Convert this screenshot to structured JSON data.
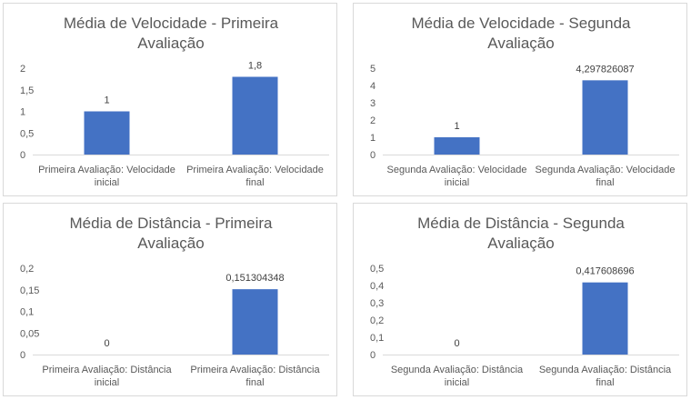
{
  "colors": {
    "bar": "#4472c4",
    "axis": "#d9d9d9",
    "text": "#595959"
  },
  "chart_data": [
    {
      "type": "bar",
      "title_lines": [
        "Média de Velocidade - Primeira",
        "Avaliação"
      ],
      "categories": [
        [
          "Primeira Avaliação: Velocidade",
          "inicial"
        ],
        [
          "Primeira Avaliação: Velocidade",
          "final"
        ]
      ],
      "values": [
        1,
        1.8
      ],
      "value_labels": [
        "1",
        "1,8"
      ],
      "yticks": [
        "0",
        "0,5",
        "1",
        "1,5",
        "2"
      ],
      "ylim": [
        0,
        2
      ],
      "grid": false,
      "legend": "none"
    },
    {
      "type": "bar",
      "title_lines": [
        "Média de Velocidade - Segunda",
        "Avaliação"
      ],
      "categories": [
        [
          "Segunda Avaliação: Velocidade",
          "inicial"
        ],
        [
          "Segunda Avaliação: Velocidade",
          "final"
        ]
      ],
      "values": [
        1,
        4.297826087
      ],
      "value_labels": [
        "1",
        "4,297826087"
      ],
      "yticks": [
        "0",
        "1",
        "2",
        "3",
        "4",
        "5"
      ],
      "ylim": [
        0,
        5
      ],
      "grid": false,
      "legend": "none"
    },
    {
      "type": "bar",
      "title_lines": [
        "Média de Distância - Primeira",
        "Avaliação"
      ],
      "categories": [
        [
          "Primeira Avaliação: Distância",
          "inicial"
        ],
        [
          "Primeira Avaliação: Distância",
          "final"
        ]
      ],
      "values": [
        0,
        0.151304348
      ],
      "value_labels": [
        "0",
        "0,151304348"
      ],
      "yticks": [
        "0",
        "0,05",
        "0,1",
        "0,15",
        "0,2"
      ],
      "ylim": [
        0,
        0.2
      ],
      "grid": false,
      "legend": "none"
    },
    {
      "type": "bar",
      "title_lines": [
        "Média de Distância - Segunda",
        "Avaliação"
      ],
      "categories": [
        [
          "Segunda Avaliação: Distância",
          "inicial"
        ],
        [
          "Segunda Avaliação: Distância",
          "final"
        ]
      ],
      "values": [
        0,
        0.417608696
      ],
      "value_labels": [
        "0",
        "0,417608696"
      ],
      "yticks": [
        "0",
        "0,1",
        "0,2",
        "0,3",
        "0,4",
        "0,5"
      ],
      "ylim": [
        0,
        0.5
      ],
      "grid": false,
      "legend": "none"
    }
  ]
}
